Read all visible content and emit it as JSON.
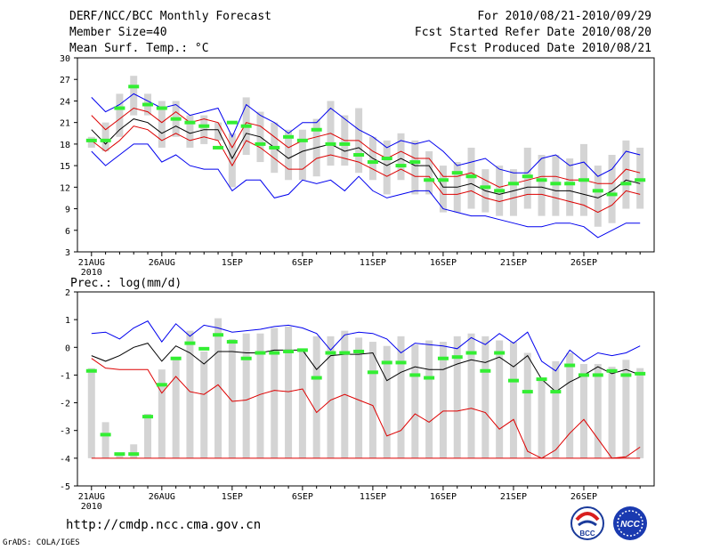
{
  "header": {
    "title": "DERF/NCC/BCC Monthly Forecast",
    "member_size": "Member Size=40",
    "variable": "Mean Surf. Temp.: °C",
    "period": "For 2010/08/21-2010/09/29",
    "refer_date": "Fcst Started Refer Date 2010/08/20",
    "produced_date": "Fcst Produced Date 2010/08/21"
  },
  "footer": {
    "url": "http://cmdp.ncc.cma.gov.cn",
    "credit": "GrADS: COLA/IGES",
    "logo_left_text": "BCC",
    "logo_right_text": "NCC"
  },
  "colors": {
    "max_min": "#0000ee",
    "spread": "#dd0000",
    "mean": "#000000",
    "bars": "#d4d4d4",
    "obs": "#33ee33"
  },
  "chart_data": [
    {
      "name": "temperature",
      "type": "line",
      "title": "Mean Surf. Temp.: °C",
      "x_ticks": [
        "21AUG",
        "26AUG",
        "1SEP",
        "6SEP",
        "11SEP",
        "16SEP",
        "21SEP",
        "26SEP"
      ],
      "x_tick_sub": "2010",
      "days": 40,
      "ylim": [
        3,
        30
      ],
      "yticks": [
        3,
        6,
        9,
        12,
        15,
        18,
        21,
        24,
        27,
        30
      ],
      "series": [
        {
          "name": "max",
          "color": "#0000ee",
          "values": [
            24.5,
            22.5,
            23.5,
            25,
            24,
            23,
            23.5,
            22,
            22.5,
            23,
            19,
            23.5,
            22,
            21,
            19.5,
            21,
            21,
            23,
            21.5,
            20,
            19,
            17.5,
            18.5,
            18,
            18.5,
            17,
            15,
            15.5,
            16,
            14.5,
            14,
            14,
            16,
            16.5,
            15,
            15.5,
            13.5,
            14.5,
            17,
            16.5
          ]
        },
        {
          "name": "spread_upper",
          "color": "#dd0000",
          "values": [
            22,
            20,
            21.5,
            23,
            22.5,
            21,
            22.5,
            21,
            21.5,
            21,
            17.5,
            21,
            20.5,
            19,
            17.5,
            18.5,
            19,
            19.5,
            18.5,
            18.5,
            17,
            16,
            17,
            16,
            16,
            13.5,
            13.5,
            14,
            13,
            12,
            12.5,
            13,
            13.5,
            13.5,
            13,
            13,
            12.5,
            12.5,
            14.5,
            14
          ]
        },
        {
          "name": "mean",
          "color": "#000000",
          "values": [
            20,
            18,
            20,
            21.5,
            21,
            19.5,
            20.5,
            19.5,
            20,
            20,
            16,
            19.5,
            19,
            17.5,
            16,
            17,
            17.5,
            18,
            17,
            17.5,
            16,
            15,
            16,
            15,
            15,
            12,
            12,
            12.5,
            11.5,
            11,
            11.5,
            12,
            12,
            11.5,
            11.5,
            11,
            10.5,
            11.5,
            13,
            12.5
          ]
        },
        {
          "name": "spread_lower",
          "color": "#dd0000",
          "values": [
            18.5,
            17,
            18.5,
            20.5,
            20,
            18.5,
            19.5,
            18.5,
            19,
            18.5,
            15,
            18.5,
            17.5,
            16,
            14.5,
            14.5,
            16,
            16.5,
            16,
            15.5,
            14.5,
            13.5,
            14.5,
            13.5,
            13.5,
            11,
            11,
            11.5,
            10.5,
            10,
            10.5,
            11,
            11,
            10.5,
            10,
            9.5,
            8.5,
            9.5,
            11.5,
            11
          ]
        },
        {
          "name": "min",
          "color": "#0000ee",
          "values": [
            17,
            15,
            16.5,
            18,
            18,
            15.5,
            16.5,
            15,
            14.5,
            14.5,
            11.5,
            13,
            13,
            10.5,
            11,
            13,
            12.5,
            13,
            11.5,
            13.5,
            11.5,
            10.5,
            11,
            11.5,
            11.5,
            9,
            8.5,
            8,
            8,
            7.5,
            7,
            6.5,
            6.5,
            7,
            7,
            6.5,
            5,
            6,
            7,
            7
          ]
        }
      ],
      "bars_low": [
        17.5,
        17,
        19,
        22,
        22,
        17.5,
        19,
        17.5,
        18,
        18.5,
        12,
        16.5,
        15.5,
        14,
        13,
        13,
        13.5,
        15,
        15,
        14,
        13,
        11,
        13,
        11,
        11,
        8.5,
        8.5,
        9,
        8.5,
        8,
        8,
        9,
        8,
        8,
        8,
        8,
        6.5,
        7,
        9,
        9
      ],
      "bars_high": [
        19,
        21,
        25,
        27.5,
        25,
        24,
        24,
        22,
        22,
        21,
        19.5,
        24.5,
        22.5,
        21,
        20,
        20,
        21.5,
        24,
        22,
        23,
        19,
        18.5,
        19.5,
        18.5,
        17,
        15,
        15.5,
        17.5,
        14.5,
        15,
        14.5,
        17.5,
        16.5,
        16.5,
        16,
        18,
        15,
        16.5,
        18.5,
        17.5
      ],
      "observed": [
        18.5,
        18.5,
        23,
        26,
        23.5,
        23,
        21.5,
        21,
        20.5,
        17.5,
        21,
        20.5,
        18,
        17.5,
        19,
        18.5,
        20,
        18,
        18,
        16.5,
        15.5,
        16,
        15,
        15.5,
        13,
        13,
        14,
        13.5,
        12,
        11.5,
        12.5,
        13.5,
        13,
        12.5,
        12.5,
        13,
        11.5,
        11,
        12.5,
        13
      ]
    },
    {
      "name": "precipitation",
      "type": "line",
      "title": "Prec.: log(mm/d)",
      "x_ticks": [
        "21AUG",
        "26AUG",
        "1SEP",
        "6SEP",
        "11SEP",
        "16SEP",
        "21SEP",
        "26SEP"
      ],
      "x_tick_sub": "2010",
      "days": 40,
      "ylim": [
        -5,
        2
      ],
      "yticks": [
        -5,
        -4,
        -3,
        -2,
        -1,
        0,
        1,
        2
      ],
      "series": [
        {
          "name": "max",
          "color": "#0000ee",
          "values": [
            0.5,
            0.55,
            0.3,
            0.7,
            0.95,
            0.2,
            0.85,
            0.4,
            0.8,
            0.7,
            0.55,
            0.6,
            0.65,
            0.75,
            0.8,
            0.7,
            0.5,
            -0.1,
            0.45,
            0.55,
            0.5,
            0.3,
            -0.2,
            0.15,
            0.1,
            0.05,
            -0.05,
            0.35,
            0.1,
            0.5,
            0.15,
            0.55,
            -0.5,
            -0.85,
            -0.1,
            -0.5,
            -0.2,
            -0.3,
            -0.2,
            0.05
          ]
        },
        {
          "name": "mean",
          "color": "#000000",
          "values": [
            -0.3,
            -0.5,
            -0.3,
            0,
            0.15,
            -0.5,
            0.05,
            -0.2,
            -0.6,
            -0.15,
            -0.15,
            -0.2,
            -0.2,
            -0.1,
            -0.1,
            -0.1,
            -0.8,
            -0.3,
            -0.25,
            -0.25,
            -0.2,
            -1.2,
            -0.9,
            -0.7,
            -0.8,
            -0.8,
            -0.6,
            -0.45,
            -0.55,
            -0.35,
            -0.7,
            -0.3,
            -1.15,
            -1.6,
            -1.25,
            -1.0,
            -0.7,
            -0.95,
            -0.8,
            -1.0
          ]
        },
        {
          "name": "precip_red",
          "color": "#dd0000",
          "values": [
            -0.4,
            -0.75,
            -0.8,
            -0.8,
            -0.8,
            -1.65,
            -1.05,
            -1.6,
            -1.7,
            -1.35,
            -1.95,
            -1.9,
            -1.7,
            -1.55,
            -1.6,
            -1.5,
            -2.35,
            -1.9,
            -1.7,
            -1.9,
            -2.1,
            -3.2,
            -3.0,
            -2.4,
            -2.7,
            -2.3,
            -2.3,
            -2.2,
            -2.35,
            -2.95,
            -2.6,
            -3.75,
            -4.0,
            -3.7,
            -3.1,
            -2.6,
            -3.3,
            -4.0,
            -3.95,
            -3.6
          ]
        },
        {
          "name": "min",
          "color": "#dd0000",
          "values": [
            -4,
            -4,
            -4,
            -4,
            -4,
            -4,
            -4,
            -4,
            -4,
            -4,
            -4,
            -4,
            -4,
            -4,
            -4,
            -4,
            -4,
            -4,
            -4,
            -4,
            -4,
            -4,
            -4,
            -4,
            -4,
            -4,
            -4,
            -4,
            -4,
            -4,
            -4,
            -4,
            -4,
            -4,
            -4,
            -4,
            -4,
            -4,
            -4,
            -4
          ]
        }
      ],
      "bars_low": [
        -4,
        -4,
        -4,
        -4,
        -4,
        -4,
        -4,
        -4,
        -4,
        -4,
        -4,
        -4,
        -4,
        -4,
        -4,
        -4,
        -4,
        -4,
        -4,
        -4,
        -4,
        -4,
        -4,
        -4,
        -4,
        -4,
        -4,
        -4,
        -4,
        -4,
        -4,
        -4,
        -4,
        -4,
        -4,
        -4,
        -4,
        -4,
        -4,
        -4
      ],
      "bars_high": [
        -0.75,
        -2.7,
        -3.85,
        -3.5,
        -2.4,
        -0.8,
        -0.4,
        0.6,
        -0.15,
        1.05,
        0.3,
        0.5,
        0.5,
        0.7,
        0.75,
        -0.15,
        0.4,
        0.4,
        0.6,
        0.35,
        0.2,
        0.05,
        0.4,
        0.1,
        0.25,
        0.2,
        0.4,
        0.5,
        0.4,
        0.25,
        0.2,
        -0.2,
        -1.2,
        -0.5,
        -0.2,
        -0.6,
        -0.6,
        -0.7,
        -0.45,
        -0.75
      ],
      "observed": [
        -0.85,
        -3.15,
        -3.85,
        -3.85,
        -2.5,
        -1.35,
        -0.4,
        0.15,
        -0.05,
        0.45,
        0.2,
        -0.4,
        -0.2,
        -0.2,
        -0.15,
        -0.1,
        -1.1,
        -0.2,
        -0.2,
        -0.15,
        -0.9,
        -0.55,
        -0.55,
        -1.0,
        -1.1,
        -0.4,
        -0.35,
        -0.2,
        -0.85,
        -0.2,
        -1.2,
        -1.6,
        -1.15,
        -1.6,
        -0.65,
        -1.0,
        -1.0,
        -0.85,
        -1.0,
        -0.95
      ]
    }
  ]
}
